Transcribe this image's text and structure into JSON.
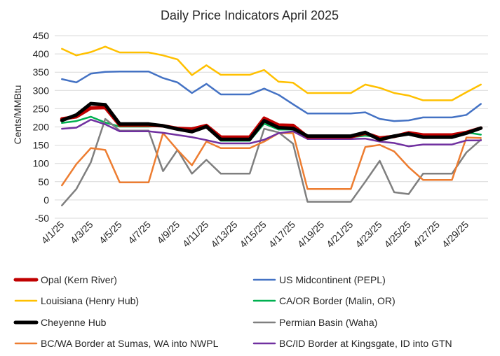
{
  "chart_data": {
    "type": "line",
    "title": "Daily Price Indicators April 2025",
    "xlabel": "",
    "ylabel": "Cents/MMBtu",
    "ylim": [
      -50,
      450
    ],
    "yticks": [
      -50,
      0,
      50,
      100,
      150,
      200,
      250,
      300,
      350,
      400,
      450
    ],
    "ytick_labels": [
      "-50",
      "0",
      "50",
      "100",
      "150",
      "200",
      "250",
      "300",
      "350",
      "400",
      "450"
    ],
    "x": [
      "4/1/25",
      "4/2/25",
      "4/3/25",
      "4/4/25",
      "4/5/25",
      "4/6/25",
      "4/7/25",
      "4/8/25",
      "4/9/25",
      "4/10/25",
      "4/11/25",
      "4/12/25",
      "4/13/25",
      "4/14/25",
      "4/15/25",
      "4/16/25",
      "4/17/25",
      "4/18/25",
      "4/19/25",
      "4/20/25",
      "4/21/25",
      "4/22/25",
      "4/23/25",
      "4/24/25",
      "4/25/25",
      "4/26/25",
      "4/27/25",
      "4/28/25",
      "4/29/25",
      "4/30/25"
    ],
    "x_tick_labels": [
      "4/1/25",
      "4/3/25",
      "4/5/25",
      "4/7/25",
      "4/9/25",
      "4/11/25",
      "4/13/25",
      "4/15/25",
      "4/17/25",
      "4/19/25",
      "4/21/25",
      "4/23/25",
      "4/25/25",
      "4/27/25",
      "4/29/25"
    ],
    "grid": "horizontal",
    "legend_position": "bottom",
    "series": [
      {
        "name": "Opal (Kern River)",
        "color": "#C00000",
        "width": 5,
        "values": [
          222,
          228,
          252,
          253,
          205,
          205,
          205,
          203,
          196,
          194,
          204,
          172,
          172,
          172,
          224,
          205,
          204,
          173,
          173,
          173,
          173,
          183,
          170,
          174,
          184,
          178,
          178,
          178,
          185,
          197
        ]
      },
      {
        "name": "US Midcontinent (PEPL)",
        "color": "#4472C4",
        "width": 2.5,
        "values": [
          331,
          322,
          346,
          351,
          352,
          352,
          352,
          334,
          322,
          293,
          318,
          289,
          289,
          289,
          305,
          288,
          262,
          237,
          237,
          237,
          237,
          240,
          222,
          216,
          218,
          226,
          226,
          226,
          233,
          263
        ]
      },
      {
        "name": "Louisiana (Henry Hub)",
        "color": "#FFC000",
        "width": 2.5,
        "values": [
          414,
          396,
          405,
          420,
          404,
          404,
          404,
          396,
          385,
          342,
          369,
          343,
          343,
          343,
          356,
          324,
          321,
          293,
          293,
          293,
          293,
          316,
          307,
          293,
          286,
          273,
          273,
          273,
          295,
          316
        ]
      },
      {
        "name": "CA/OR Border (Malin, OR)",
        "color": "#00B050",
        "width": 2.5,
        "values": [
          211,
          216,
          228,
          212,
          201,
          201,
          201,
          203,
          192,
          197,
          204,
          162,
          162,
          162,
          209,
          193,
          193,
          172,
          172,
          172,
          172,
          176,
          172,
          176,
          182,
          175,
          175,
          175,
          185,
          179
        ]
      },
      {
        "name": "Cheyenne Hub",
        "color": "#000000",
        "width": 5,
        "values": [
          218,
          233,
          264,
          261,
          208,
          208,
          208,
          203,
          194,
          187,
          201,
          166,
          166,
          166,
          217,
          198,
          196,
          175,
          175,
          175,
          175,
          185,
          165,
          175,
          181,
          172,
          172,
          172,
          183,
          197
        ]
      },
      {
        "name": "Permian Basin (Waha)",
        "color": "#7F7F7F",
        "width": 2.5,
        "values": [
          -15,
          30,
          103,
          222,
          190,
          190,
          190,
          79,
          137,
          72,
          110,
          72,
          72,
          72,
          195,
          185,
          154,
          -5,
          -5,
          -5,
          -5,
          50,
          107,
          21,
          16,
          72,
          72,
          72,
          130,
          165
        ]
      },
      {
        "name": "BC/WA Border at Sumas, WA into NWPL",
        "color": "#ED7D31",
        "width": 2.5,
        "values": [
          40,
          98,
          142,
          137,
          48,
          48,
          48,
          183,
          137,
          95,
          160,
          142,
          142,
          142,
          160,
          183,
          183,
          30,
          30,
          30,
          30,
          145,
          151,
          133,
          90,
          55,
          55,
          55,
          171,
          170
        ]
      },
      {
        "name": "BC/ID Border at Kingsgate, ID into GTN",
        "color": "#7030A0",
        "width": 2.5,
        "values": [
          195,
          198,
          220,
          207,
          188,
          188,
          188,
          184,
          178,
          172,
          164,
          155,
          155,
          155,
          165,
          183,
          188,
          167,
          167,
          167,
          167,
          168,
          160,
          156,
          147,
          152,
          152,
          152,
          163,
          163
        ]
      }
    ]
  }
}
